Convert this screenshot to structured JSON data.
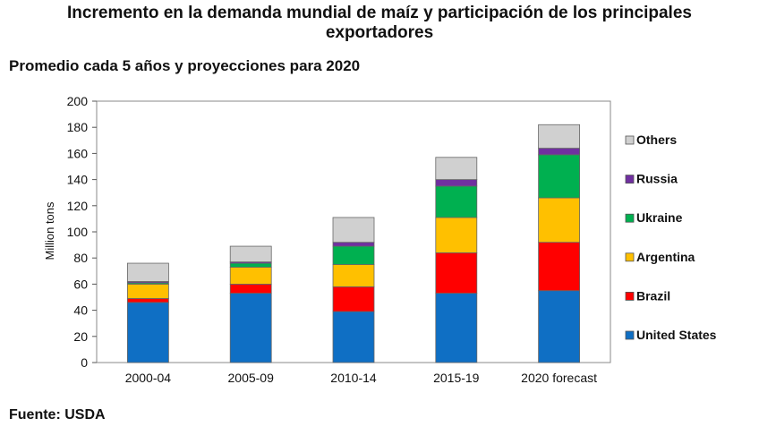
{
  "chart_data": {
    "type": "bar",
    "stacked": true,
    "title": "Incremento en la demanda mundial de maíz y participación de los principales exportadores",
    "title_line1": "Incremento en la demanda mundial de maíz y participación de los principales",
    "title_line2": "exportadores",
    "subtitle": "Promedio cada 5 años y proyecciones para 2020",
    "ylabel": "Million tons",
    "xlabel": "",
    "ylim": [
      0,
      200
    ],
    "yticks": [
      "0",
      "20",
      "40",
      "60",
      "80",
      "100",
      "120",
      "140",
      "160",
      "180",
      "200"
    ],
    "categories": [
      "2000-04",
      "2005-09",
      "2010-14",
      "2015-19",
      "2020 forecast"
    ],
    "series": [
      {
        "name": "United States",
        "color": "#0f6fc4",
        "values": [
          46,
          53,
          39,
          53,
          55
        ]
      },
      {
        "name": "Brazil",
        "color": "#ff0000",
        "values": [
          3,
          7,
          19,
          31,
          37
        ]
      },
      {
        "name": "Argentina",
        "color": "#ffc000",
        "values": [
          11,
          13,
          17,
          27,
          34
        ]
      },
      {
        "name": "Ukraine",
        "color": "#00b050",
        "values": [
          1,
          3,
          14,
          24,
          33
        ]
      },
      {
        "name": "Russia",
        "color": "#7030a0",
        "values": [
          1,
          1,
          3,
          5,
          5
        ]
      },
      {
        "name": "Others",
        "color": "#d0d0d0",
        "values": [
          14,
          12,
          19,
          17,
          18
        ]
      }
    ],
    "legend_order": [
      "Others",
      "Russia",
      "Ukraine",
      "Argentina",
      "Brazil",
      "United States"
    ],
    "legend_position": "right",
    "grid": false
  },
  "source": "Fuente: USDA"
}
